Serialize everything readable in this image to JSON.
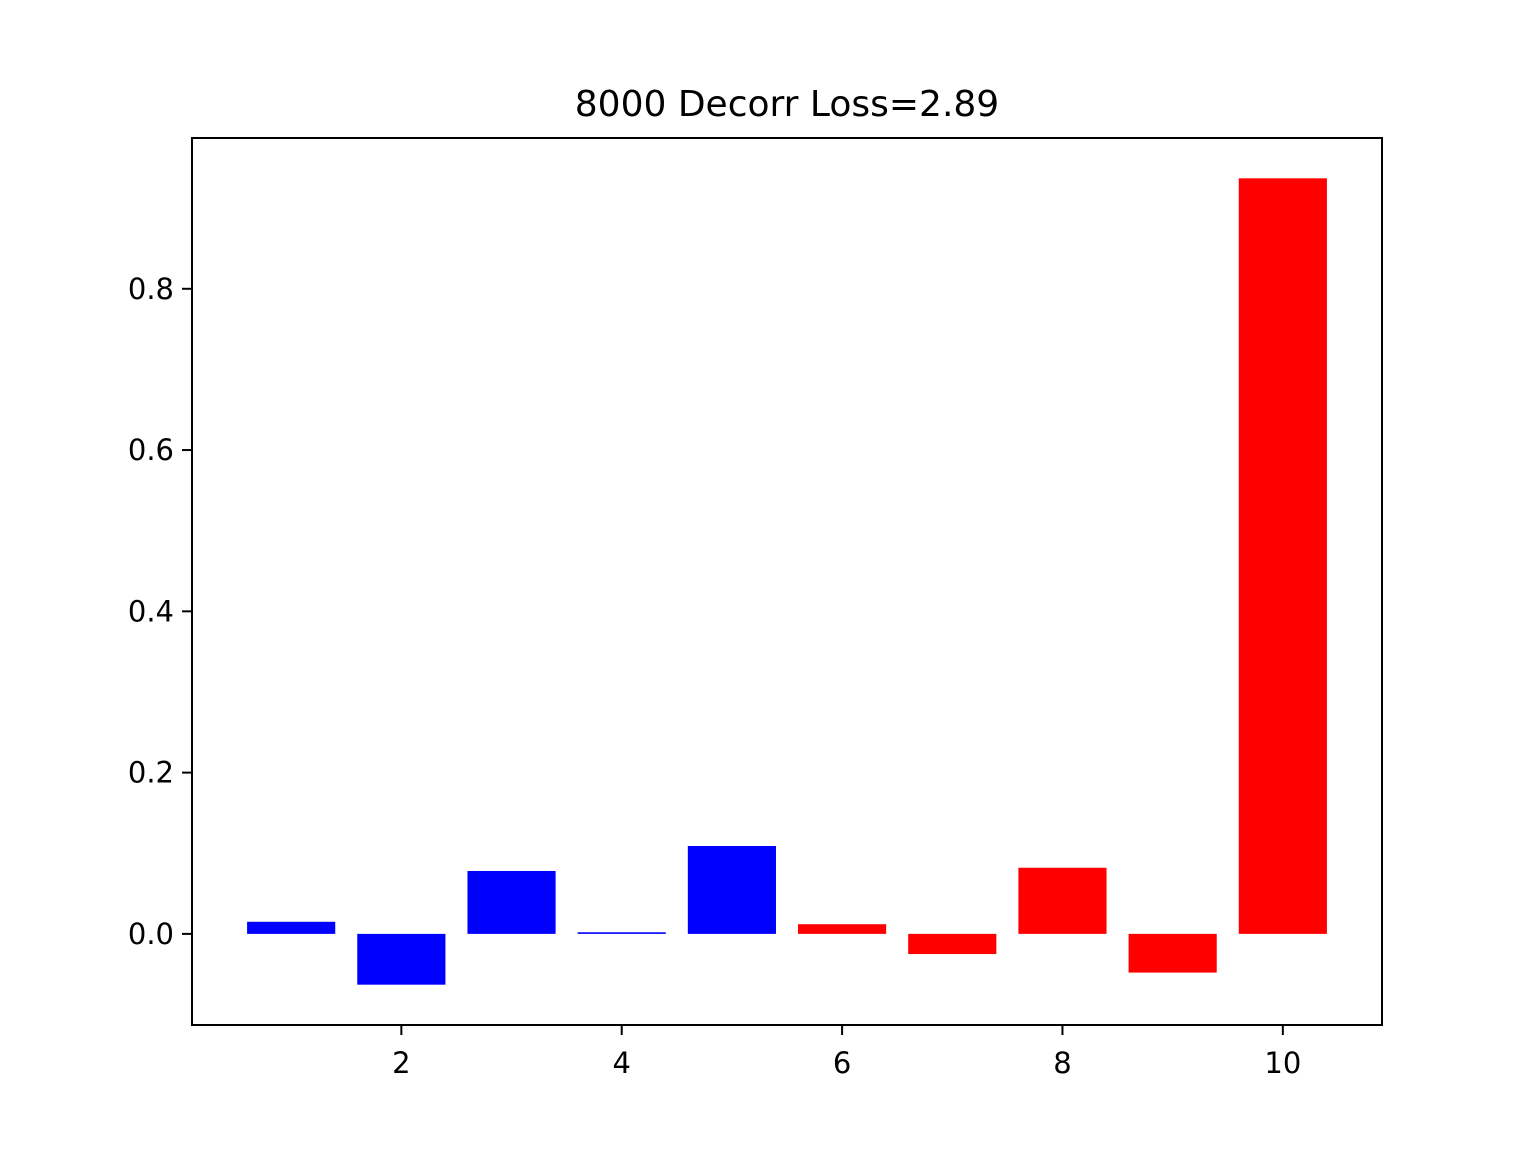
{
  "chart_data": {
    "type": "bar",
    "title": "8000 Decorr Loss=2.89",
    "xlabel": "",
    "ylabel": "",
    "x": [
      1,
      2,
      3,
      4,
      5,
      6,
      7,
      8,
      9,
      10
    ],
    "values": [
      0.015,
      -0.063,
      0.078,
      0.002,
      0.109,
      0.012,
      -0.025,
      0.082,
      -0.048,
      0.937
    ],
    "bar_colors": [
      "#0000ff",
      "#0000ff",
      "#0000ff",
      "#0000ff",
      "#0000ff",
      "#ff0000",
      "#ff0000",
      "#ff0000",
      "#ff0000",
      "#ff0000"
    ],
    "xlim": [
      0.1,
      10.9
    ],
    "ylim": [
      -0.113,
      0.987
    ],
    "xticks": [
      2,
      4,
      6,
      8,
      10
    ],
    "xtick_labels": [
      "2",
      "4",
      "6",
      "8",
      "10"
    ],
    "yticks": [
      0.0,
      0.2,
      0.4,
      0.6,
      0.8
    ],
    "ytick_labels": [
      "0.0",
      "0.2",
      "0.4",
      "0.6",
      "0.8"
    ],
    "grid": false,
    "legend": "none"
  }
}
